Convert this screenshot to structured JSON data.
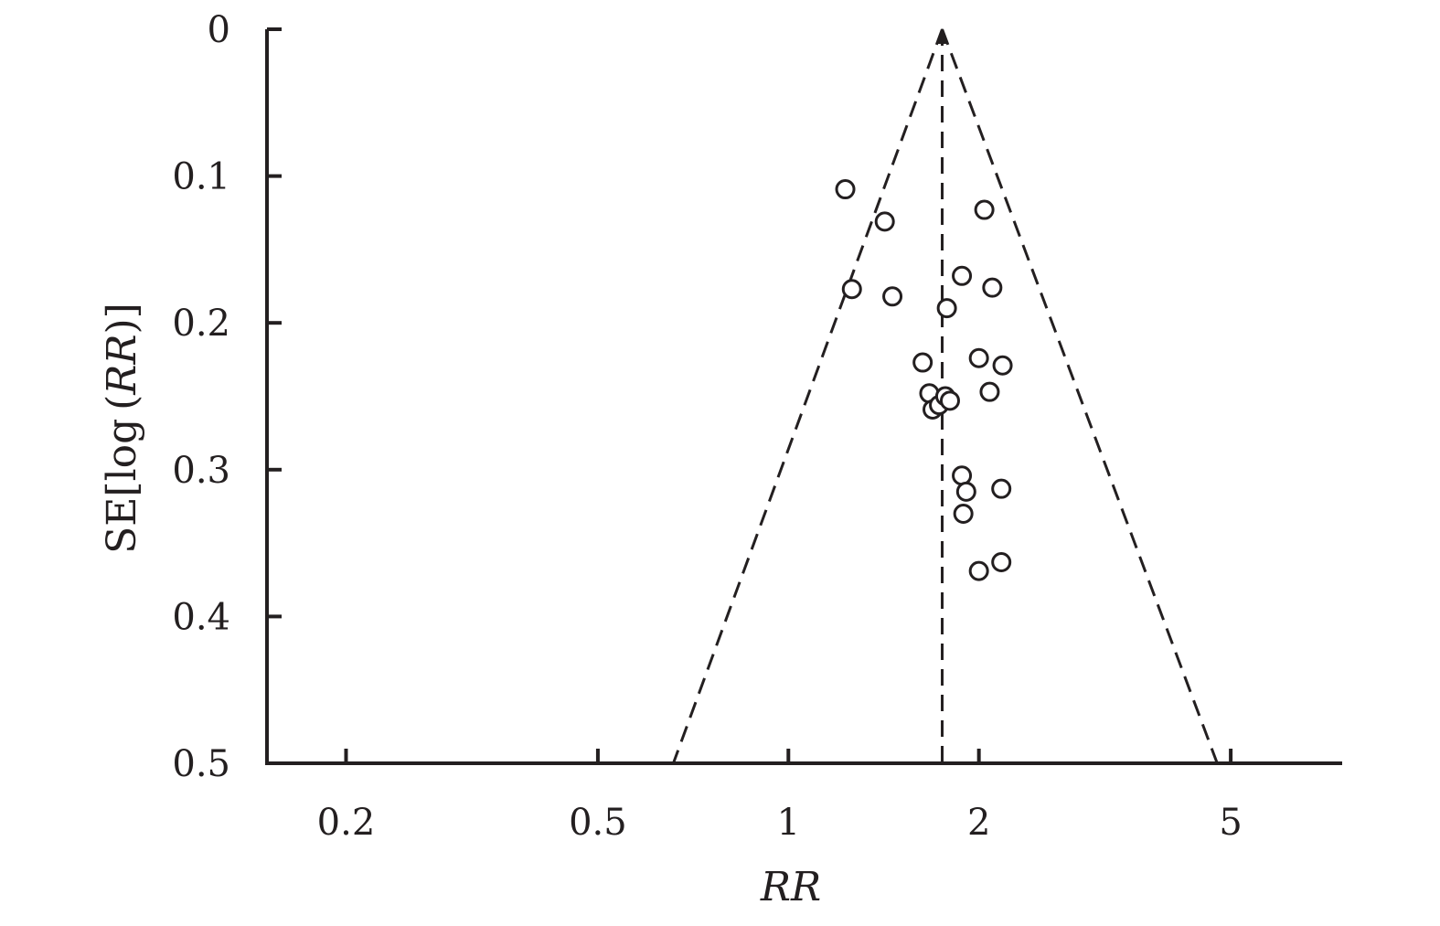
{
  "chart_data": {
    "type": "scatter",
    "title": "",
    "xlabel": "RR",
    "ylabel_prefix": "SE[log (",
    "ylabel_italic": "RR",
    "ylabel_suffix": ")]",
    "x_scale": "log",
    "xlim": [
      0.15,
      7.5
    ],
    "ylim": [
      0,
      0.5
    ],
    "y_inverted": true,
    "x_ticks": [
      0.2,
      0.5,
      1,
      2,
      5
    ],
    "x_tick_labels": [
      "0.2",
      "0.5",
      "1",
      "2",
      "5"
    ],
    "y_ticks": [
      0,
      0.1,
      0.2,
      0.3,
      0.4,
      0.5
    ],
    "y_tick_labels": [
      "0",
      "0.1",
      "0.2",
      "0.3",
      "0.4",
      "0.5"
    ],
    "pooled_rr": 1.75,
    "funnel_lower_at_max_se": 0.658,
    "funnel_upper_at_max_se": 4.76,
    "grid": false,
    "points": [
      {
        "x": 1.23,
        "y": 0.109
      },
      {
        "x": 1.42,
        "y": 0.131
      },
      {
        "x": 2.04,
        "y": 0.123
      },
      {
        "x": 1.26,
        "y": 0.177
      },
      {
        "x": 1.46,
        "y": 0.182
      },
      {
        "x": 1.88,
        "y": 0.168
      },
      {
        "x": 2.1,
        "y": 0.176
      },
      {
        "x": 1.78,
        "y": 0.19
      },
      {
        "x": 1.63,
        "y": 0.227
      },
      {
        "x": 2.0,
        "y": 0.224
      },
      {
        "x": 2.18,
        "y": 0.229
      },
      {
        "x": 1.67,
        "y": 0.248
      },
      {
        "x": 1.69,
        "y": 0.259
      },
      {
        "x": 1.73,
        "y": 0.256
      },
      {
        "x": 1.77,
        "y": 0.25
      },
      {
        "x": 1.8,
        "y": 0.253
      },
      {
        "x": 2.08,
        "y": 0.247
      },
      {
        "x": 1.88,
        "y": 0.304
      },
      {
        "x": 1.91,
        "y": 0.315
      },
      {
        "x": 2.17,
        "y": 0.313
      },
      {
        "x": 1.89,
        "y": 0.33
      },
      {
        "x": 2.0,
        "y": 0.369
      },
      {
        "x": 2.17,
        "y": 0.363
      }
    ]
  }
}
